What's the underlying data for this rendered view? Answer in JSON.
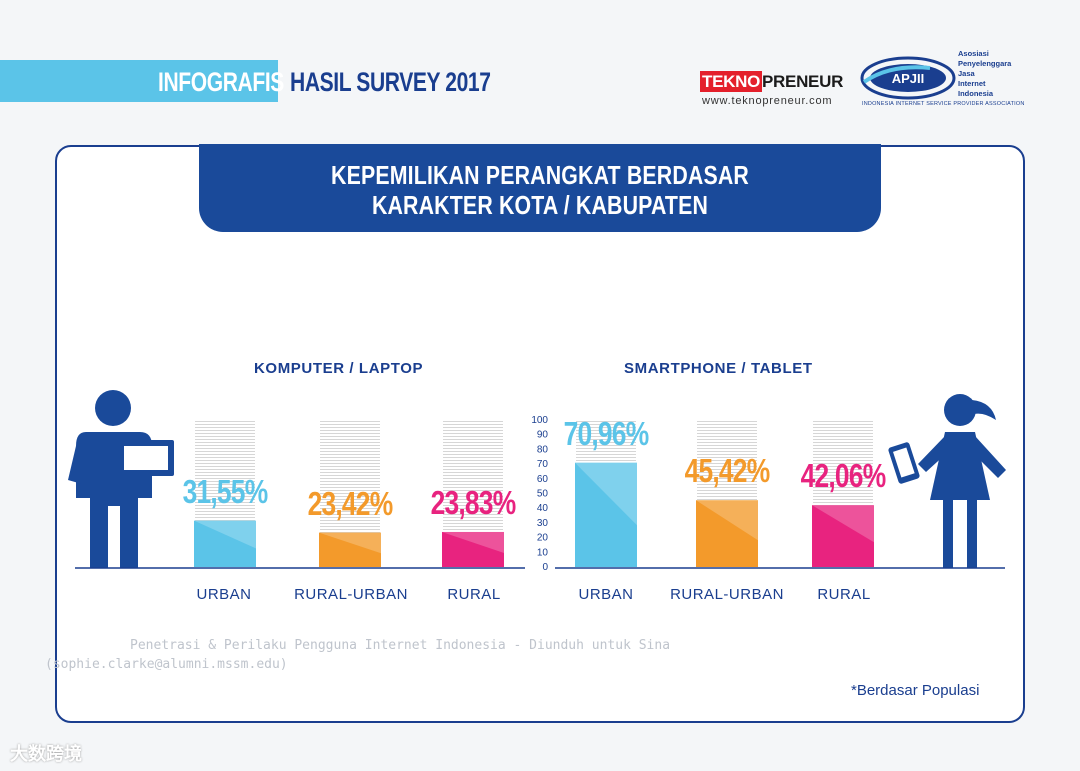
{
  "header": {
    "infografis": "INFOGRAFIS",
    "survey": "HASIL SURVEY 2017",
    "tekno_a": "TEKNO",
    "tekno_b": "PRENEUR",
    "tekno_url": "www.teknopreneur.com",
    "apjii_logo": "APJII",
    "apjii_lines": [
      "Asosiasi",
      "Penyelenggara",
      "Jasa",
      "Internet",
      "Indonesia"
    ],
    "apjii_sub": "INDONESIA INTERNET SERVICE PROVIDER ASSOCIATION"
  },
  "title": {
    "line1": "KEPEMILIKAN PERANGKAT BERDASAR",
    "line2": "KARAKTER KOTA / KABUPATEN"
  },
  "chart_data": [
    {
      "type": "bar",
      "title": "KOMPUTER / LAPTOP",
      "categories": [
        "URBAN",
        "RURAL-URBAN",
        "RURAL"
      ],
      "values": [
        31.55,
        23.42,
        23.83
      ],
      "labels": [
        "31,55%",
        "23,42%",
        "23,83%"
      ],
      "colors": [
        "#5bc4e8",
        "#f39a2b",
        "#e8237f"
      ],
      "ylim": [
        0,
        100
      ]
    },
    {
      "type": "bar",
      "title": "SMARTPHONE / TABLET",
      "categories": [
        "URBAN",
        "RURAL-URBAN",
        "RURAL"
      ],
      "values": [
        70.96,
        45.42,
        42.06
      ],
      "labels": [
        "70,96%",
        "45,42%",
        "42,06%"
      ],
      "colors": [
        "#5bc4e8",
        "#f39a2b",
        "#e8237f"
      ],
      "ylim": [
        0,
        100
      ],
      "yticks": [
        0,
        10,
        20,
        30,
        40,
        50,
        60,
        70,
        80,
        90,
        100
      ]
    }
  ],
  "footnote": "*Berdasar Populasi",
  "watermark": {
    "line1": "Penetrasi & Perilaku Pengguna Internet Indonesia - Diunduh untuk Sina",
    "line2": "(sophie.clarke@alumni.mssm.edu)"
  },
  "brand": "大数跨境",
  "icons": [
    "businessman-with-laptop-icon",
    "woman-with-tablet-icon"
  ]
}
